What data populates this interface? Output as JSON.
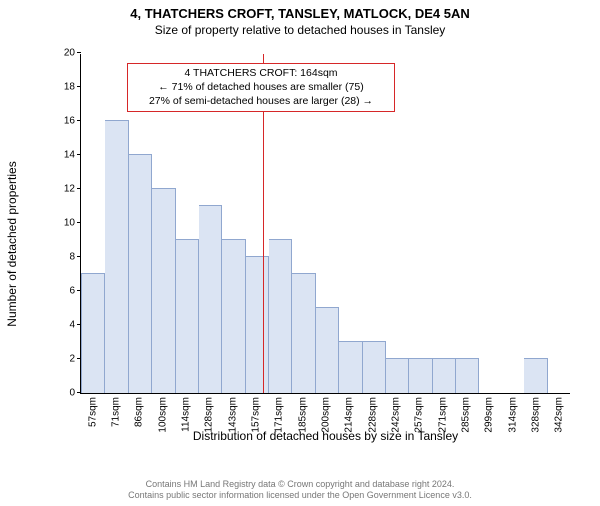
{
  "header": {
    "title": "4, THATCHERS CROFT, TANSLEY, MATLOCK, DE4 5AN",
    "subtitle": "Size of property relative to detached houses in Tansley"
  },
  "chart": {
    "type": "histogram",
    "ylabel": "Number of detached properties",
    "xlabel": "Distribution of detached houses by size in Tansley",
    "ylim": [
      0,
      20
    ],
    "ytick_step": 2,
    "bar_fill": "#dbe4f3",
    "bar_stroke": "#90a7cf",
    "background_color": "#ffffff",
    "categories": [
      "57sqm",
      "71sqm",
      "86sqm",
      "100sqm",
      "114sqm",
      "128sqm",
      "143sqm",
      "157sqm",
      "171sqm",
      "185sqm",
      "200sqm",
      "214sqm",
      "228sqm",
      "242sqm",
      "257sqm",
      "271sqm",
      "285sqm",
      "299sqm",
      "314sqm",
      "328sqm",
      "342sqm"
    ],
    "values": [
      7,
      16,
      14,
      12,
      9,
      11,
      9,
      8,
      9,
      7,
      5,
      3,
      3,
      2,
      2,
      2,
      2,
      0,
      0,
      2,
      0
    ],
    "label_fontsize": 12,
    "tick_fontsize": 10
  },
  "marker": {
    "color": "#d62728",
    "width": 1,
    "position_index": 7.8,
    "annotation": {
      "border_color": "#d62728",
      "lines": [
        "4 THATCHERS CROFT: 164sqm",
        "← 71% of detached houses are smaller (75)",
        "27% of semi-detached houses are larger (28) →"
      ]
    }
  },
  "footer": {
    "line1": "Contains HM Land Registry data © Crown copyright and database right 2024.",
    "line2": "Contains public sector information licensed under the Open Government Licence v3.0."
  }
}
